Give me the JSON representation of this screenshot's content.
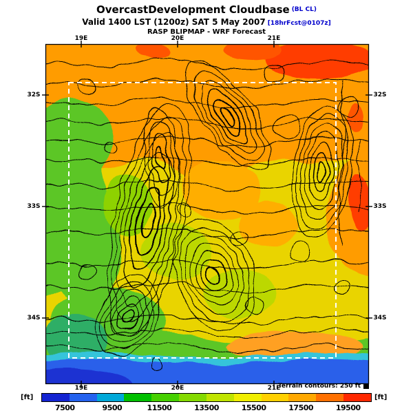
{
  "header": {
    "title": "OvercastDevelopment Cloudbase",
    "title_suffix": "(BL CL)",
    "valid": "Valid 1400 LST (1200z) SAT 5 May 2007",
    "valid_suffix": "[18hrFcst@0107z]",
    "source": "RASP BLIPMAP - WRF Forecast"
  },
  "map": {
    "x_ticks_top": [
      "19E",
      "20E",
      "21E"
    ],
    "x_ticks_bottom": [
      "19E",
      "20E",
      "21E"
    ],
    "y_ticks_left": [
      "32S",
      "33S",
      "34S"
    ],
    "y_ticks_right": [
      "32S",
      "33S",
      "34S"
    ]
  },
  "colorbar": {
    "unit_left": "[ft]",
    "unit_right": "[ft]",
    "labels": [
      "7500",
      "9500",
      "11500",
      "13500",
      "15500",
      "17500",
      "19500"
    ],
    "colors": [
      "#1424d2",
      "#2462ee",
      "#00a8d8",
      "#00c000",
      "#46d000",
      "#84da00",
      "#c0e400",
      "#f0ee00",
      "#ffd000",
      "#ffa800",
      "#ff7000",
      "#ff2800"
    ]
  },
  "legend": {
    "terrain_note": "Terrain contours: 250 ft"
  },
  "chart_data": {
    "type": "heatmap",
    "title": "OvercastDevelopment Cloudbase (BL CL)",
    "subtitle": "Valid 1400 LST (1200z) SAT 5 May 2007 [18hrFcst@0107z]",
    "source": "RASP BLIPMAP - WRF Forecast",
    "units": "ft",
    "colorbar_ticks": [
      7500,
      9500,
      11500,
      13500,
      15500,
      17500,
      19500
    ],
    "colorbar_colors": [
      "#1424d2",
      "#2462ee",
      "#00a8d8",
      "#00c000",
      "#46d000",
      "#84da00",
      "#c0e400",
      "#f0ee00",
      "#ffd000",
      "#ffa800",
      "#ff7000",
      "#ff2800"
    ],
    "x_axis_ticks": [
      "19E",
      "20E",
      "21E"
    ],
    "y_axis_ticks": [
      "32S",
      "33S",
      "34S"
    ],
    "terrain_contour_interval": "250 ft",
    "legend_position": "bottom",
    "notes": "Filled-contour forecast map: high cloudbase (orange/red 17500-19500 ft) over north and east, mid values (yellow/green 11500-15500 ft) center and west, low values (blue 7500-9500 ft) along southern ocean edge; black terrain contours; white dashed model domain box"
  }
}
